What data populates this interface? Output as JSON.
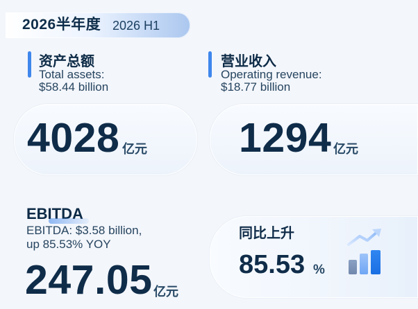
{
  "header": {
    "title": "2026半年度",
    "subtitle": "2026 H1"
  },
  "total_assets": {
    "label_cn": "资产总额",
    "label_en_line1": "Total assets:",
    "label_en_line2": "$58.44 billion",
    "value": "4028",
    "unit": "亿元"
  },
  "operating_revenue": {
    "label_cn": "营业收入",
    "label_en_line1": "Operating revenue:",
    "label_en_line2": "$18.77 billion",
    "value": "1294",
    "unit": "亿元"
  },
  "ebitda": {
    "title": "EBITDA",
    "desc_line1": "EBITDA: $3.58 billion,",
    "desc_line2": "up 85.53% YOY",
    "value": "247.05",
    "unit": "亿元"
  },
  "growth": {
    "label": "同比上升",
    "value": "85.53",
    "unit": "%"
  },
  "icons": {
    "header_badge": "none",
    "trend_icon": "bar-trend-up-icon"
  },
  "colors": {
    "accent_blue": "#3f87ec",
    "dark_navy": "#0f2c49",
    "background": "#f3f6fb"
  }
}
